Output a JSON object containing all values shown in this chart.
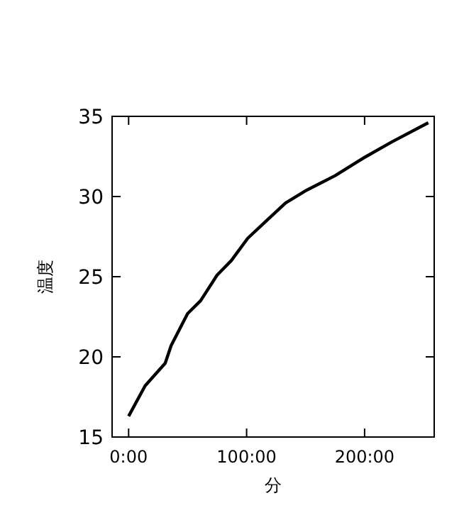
{
  "chart_data": {
    "type": "line",
    "xlabel": "分",
    "ylabel": "温度",
    "x": [
      0,
      14,
      31,
      36,
      50,
      61,
      75,
      87,
      101,
      117,
      133,
      151,
      175,
      199,
      223,
      254
    ],
    "series": [
      {
        "color": "#000000",
        "values": [
          16.3,
          18.2,
          19.6,
          20.7,
          22.7,
          23.5,
          25.1,
          26.0,
          27.4,
          28.5,
          29.6,
          30.4,
          31.3,
          32.4,
          33.4,
          34.6
        ]
      }
    ],
    "xlim": [
      -14,
      259
    ],
    "xticks": [
      {
        "value": 0,
        "label": "0:00"
      },
      {
        "value": 100,
        "label": "100:00"
      },
      {
        "value": 200,
        "label": "200:00"
      }
    ],
    "ylim": [
      15,
      35
    ],
    "yticks": [
      15,
      20,
      25,
      30,
      35
    ],
    "grid": false,
    "marker": "none",
    "line_style": "solid"
  }
}
